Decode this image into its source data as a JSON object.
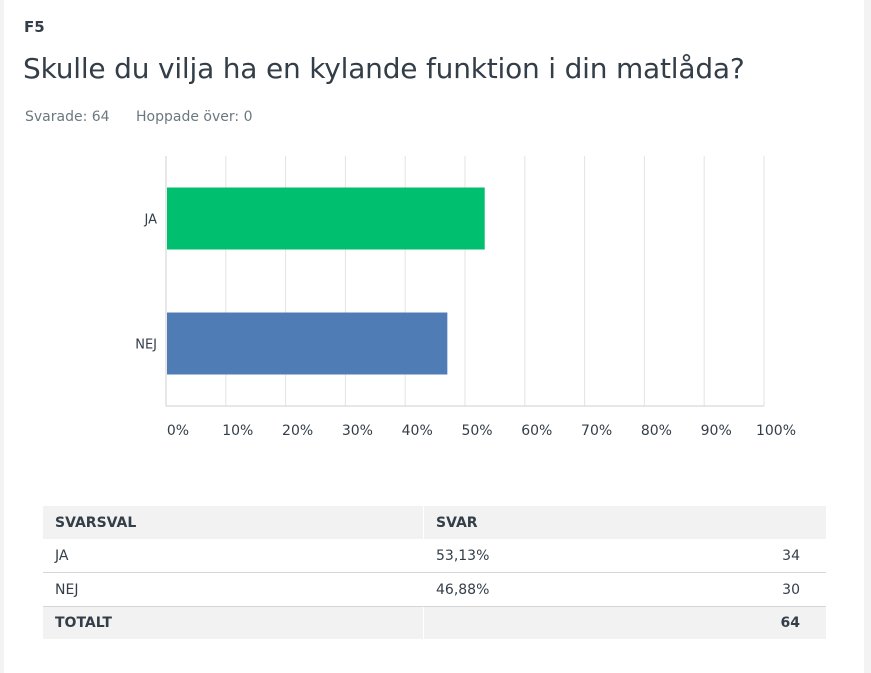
{
  "question": {
    "number": "F5",
    "title": "Skulle du vilja ha en kylande funktion i din matlåda?",
    "answered": "Svarade: 64",
    "skipped": "Hoppade över: 0"
  },
  "chart_data": {
    "type": "bar",
    "orientation": "horizontal",
    "categories": [
      "JA",
      "NEJ"
    ],
    "values": [
      53.13,
      46.88
    ],
    "colors": [
      "#00bf6f",
      "#507cb6"
    ],
    "xlim": [
      0,
      100
    ],
    "x_ticks": [
      "0%",
      "10%",
      "20%",
      "30%",
      "40%",
      "50%",
      "60%",
      "70%",
      "80%",
      "90%",
      "100%"
    ],
    "grid": true
  },
  "table": {
    "headers": [
      "SVARSVAL",
      "SVAR",
      ""
    ],
    "rows": [
      {
        "choice": "JA",
        "percent": "53,13%",
        "count": "34"
      },
      {
        "choice": "NEJ",
        "percent": "46,88%",
        "count": "30"
      }
    ],
    "total_label": "TOTALT",
    "total_count": "64"
  }
}
